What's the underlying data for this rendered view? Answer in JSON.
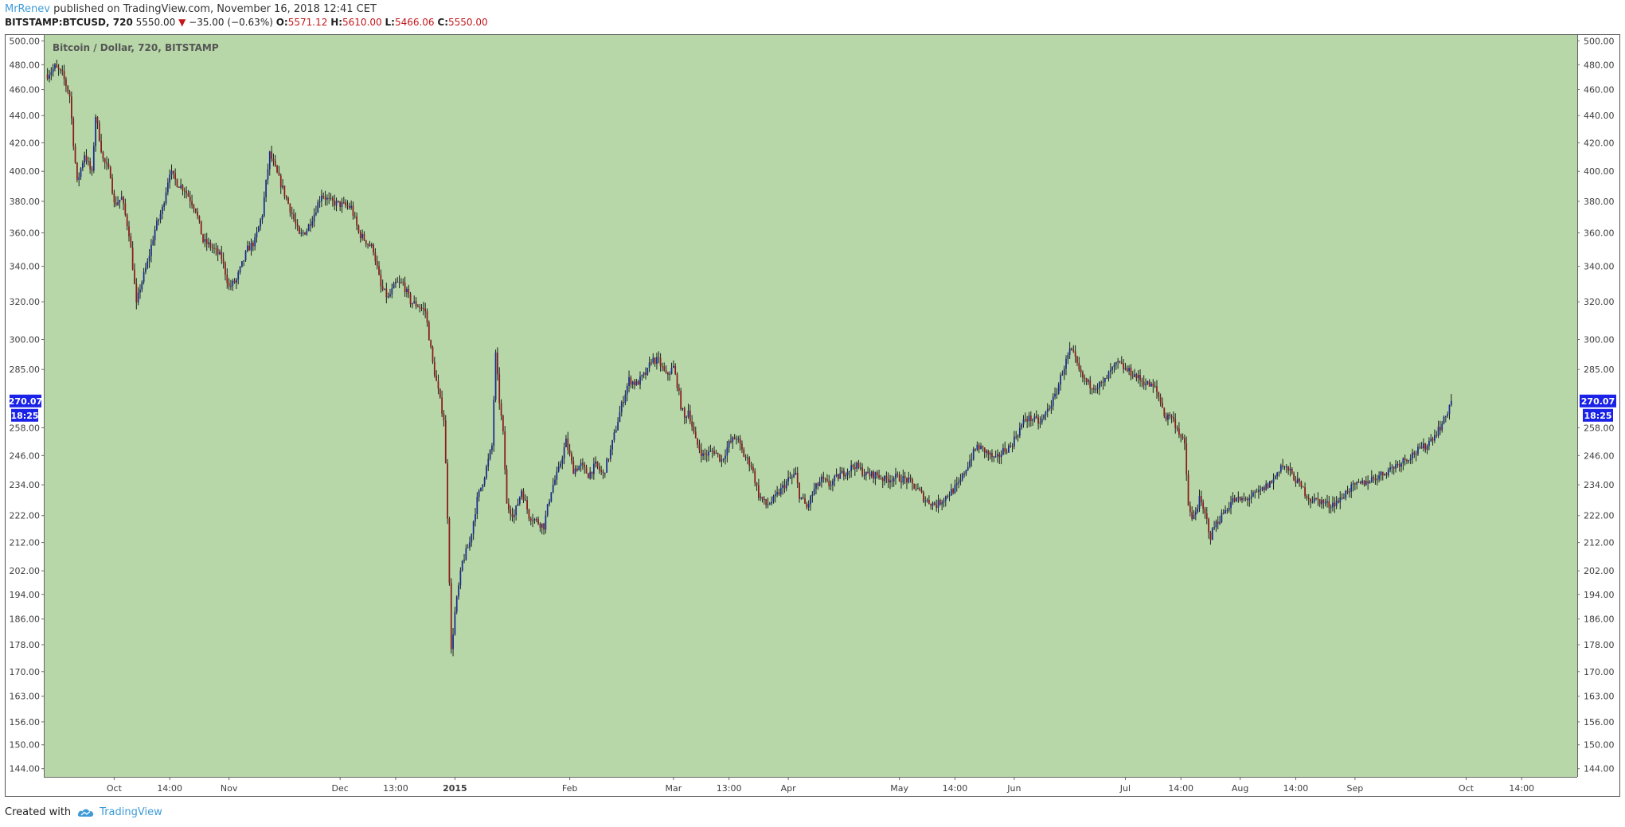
{
  "header": {
    "user": "MrRenev",
    "published": " published on TradingView.com, November 16, 2018 12:41 CET"
  },
  "quote": {
    "symbol": "BITSTAMP:BTCUSD, 720",
    "last": "5550.00",
    "arrow": "▼",
    "change": "−35.00 (−0.63%)",
    "o_label": "O:",
    "o": "5571.12",
    "h_label": "H:",
    "h": "5610.00",
    "l_label": "L:",
    "l": "5466.06",
    "c_label": "C:",
    "c": "5550.00"
  },
  "footer": {
    "created_with": "Created with",
    "brand": "TradingView"
  },
  "colors": {
    "plot_bg": "#b7d7a8",
    "up": "#1a2d8e",
    "down": "#8b1c1c",
    "wick": "#1e1e1e",
    "badge": "#1a22e8",
    "axis_text": "#3d3d3d"
  },
  "chart_data": {
    "type": "candlestick",
    "title": "Bitcoin / Dollar, 720, BITSTAMP",
    "scale": "log",
    "ylim": [
      142,
      505
    ],
    "y_ticks": [
      500,
      480,
      460,
      440,
      420,
      400,
      380,
      360,
      340,
      320,
      300,
      285,
      270.07,
      258,
      246,
      234,
      222,
      212,
      202,
      194,
      186,
      178,
      170,
      163,
      156,
      150,
      144
    ],
    "y_tick_labels": [
      "500.00",
      "480.00",
      "460.00",
      "440.00",
      "420.00",
      "400.00",
      "380.00",
      "360.00",
      "340.00",
      "320.00",
      "300.00",
      "285.00",
      "270.07",
      "258.00",
      "246.00",
      "234.00",
      "222.00",
      "212.00",
      "202.00",
      "194.00",
      "186.00",
      "178.00",
      "170.00",
      "163.00",
      "156.00",
      "150.00",
      "144.00"
    ],
    "last_price_label": "270.07",
    "countdown_label": "18:25",
    "x_range_days": [
      -1,
      413
    ],
    "x_ticks": [
      {
        "day": 18,
        "label": "Oct",
        "bold": false
      },
      {
        "day": 33,
        "label": "14:00",
        "bold": false
      },
      {
        "day": 49,
        "label": "Nov",
        "bold": false
      },
      {
        "day": 79,
        "label": "Dec",
        "bold": false
      },
      {
        "day": 94,
        "label": "13:00",
        "bold": false
      },
      {
        "day": 110,
        "label": "2015",
        "bold": true
      },
      {
        "day": 141,
        "label": "Feb",
        "bold": false
      },
      {
        "day": 169,
        "label": "Mar",
        "bold": false
      },
      {
        "day": 184,
        "label": "13:00",
        "bold": false
      },
      {
        "day": 200,
        "label": "Apr",
        "bold": false
      },
      {
        "day": 230,
        "label": "May",
        "bold": false
      },
      {
        "day": 245,
        "label": "14:00",
        "bold": false
      },
      {
        "day": 261,
        "label": "Jun",
        "bold": false
      },
      {
        "day": 291,
        "label": "Jul",
        "bold": false
      },
      {
        "day": 306,
        "label": "14:00",
        "bold": false
      },
      {
        "day": 322,
        "label": "Aug",
        "bold": false
      },
      {
        "day": 337,
        "label": "14:00",
        "bold": false
      },
      {
        "day": 353,
        "label": "Sep",
        "bold": false
      },
      {
        "day": 383,
        "label": "Oct",
        "bold": false
      },
      {
        "day": 398,
        "label": "14:00",
        "bold": false
      }
    ],
    "price_path": [
      [
        0,
        472
      ],
      [
        2,
        478
      ],
      [
        4,
        472
      ],
      [
        6,
        455
      ],
      [
        7,
        420
      ],
      [
        8,
        392
      ],
      [
        10,
        412
      ],
      [
        12,
        398
      ],
      [
        13,
        440
      ],
      [
        15,
        408
      ],
      [
        17,
        398
      ],
      [
        18,
        378
      ],
      [
        20,
        382
      ],
      [
        22,
        360
      ],
      [
        23,
        340
      ],
      [
        24,
        318
      ],
      [
        25,
        328
      ],
      [
        27,
        342
      ],
      [
        29,
        362
      ],
      [
        31,
        375
      ],
      [
        33,
        400
      ],
      [
        35,
        392
      ],
      [
        37,
        388
      ],
      [
        40,
        375
      ],
      [
        42,
        355
      ],
      [
        44,
        352
      ],
      [
        47,
        345
      ],
      [
        49,
        328
      ],
      [
        51,
        332
      ],
      [
        54,
        350
      ],
      [
        56,
        355
      ],
      [
        58,
        372
      ],
      [
        60,
        412
      ],
      [
        62,
        398
      ],
      [
        64,
        385
      ],
      [
        66,
        372
      ],
      [
        68,
        358
      ],
      [
        70,
        362
      ],
      [
        72,
        372
      ],
      [
        74,
        385
      ],
      [
        76,
        380
      ],
      [
        79,
        378
      ],
      [
        82,
        376
      ],
      [
        84,
        360
      ],
      [
        86,
        355
      ],
      [
        88,
        350
      ],
      [
        90,
        328
      ],
      [
        92,
        322
      ],
      [
        94,
        330
      ],
      [
        96,
        330
      ],
      [
        98,
        320
      ],
      [
        100,
        318
      ],
      [
        102,
        315
      ],
      [
        104,
        288
      ],
      [
        106,
        270
      ],
      [
        107,
        262
      ],
      [
        108,
        222
      ],
      [
        109,
        176
      ],
      [
        110,
        188
      ],
      [
        112,
        205
      ],
      [
        114,
        212
      ],
      [
        116,
        228
      ],
      [
        118,
        238
      ],
      [
        120,
        250
      ],
      [
        121,
        292
      ],
      [
        122,
        270
      ],
      [
        123,
        255
      ],
      [
        124,
        226
      ],
      [
        126,
        222
      ],
      [
        128,
        232
      ],
      [
        130,
        222
      ],
      [
        132,
        220
      ],
      [
        134,
        218
      ],
      [
        136,
        232
      ],
      [
        138,
        240
      ],
      [
        140,
        252
      ],
      [
        142,
        240
      ],
      [
        144,
        242
      ],
      [
        146,
        238
      ],
      [
        148,
        242
      ],
      [
        150,
        238
      ],
      [
        152,
        248
      ],
      [
        155,
        268
      ],
      [
        157,
        280
      ],
      [
        159,
        278
      ],
      [
        162,
        284
      ],
      [
        163,
        290
      ],
      [
        165,
        289
      ],
      [
        167,
        282
      ],
      [
        169,
        286
      ],
      [
        170,
        278
      ],
      [
        171,
        268
      ],
      [
        172,
        262
      ],
      [
        173,
        266
      ],
      [
        175,
        252
      ],
      [
        177,
        246
      ],
      [
        180,
        248
      ],
      [
        182,
        244
      ],
      [
        184,
        251
      ],
      [
        186,
        254
      ],
      [
        188,
        246
      ],
      [
        190,
        242
      ],
      [
        192,
        230
      ],
      [
        194,
        226
      ],
      [
        196,
        228
      ],
      [
        198,
        232
      ],
      [
        200,
        236
      ],
      [
        202,
        238
      ],
      [
        203,
        230
      ],
      [
        205,
        225
      ],
      [
        207,
        232
      ],
      [
        209,
        236
      ],
      [
        211,
        234
      ],
      [
        214,
        238
      ],
      [
        216,
        240
      ],
      [
        218,
        242
      ],
      [
        221,
        238
      ],
      [
        224,
        238
      ],
      [
        226,
        236
      ],
      [
        229,
        237
      ],
      [
        232,
        236
      ],
      [
        235,
        232
      ],
      [
        237,
        228
      ],
      [
        240,
        226
      ],
      [
        243,
        230
      ],
      [
        246,
        234
      ],
      [
        249,
        244
      ],
      [
        251,
        250
      ],
      [
        253,
        248
      ],
      [
        256,
        244
      ],
      [
        258,
        248
      ],
      [
        260,
        250
      ],
      [
        262,
        256
      ],
      [
        264,
        262
      ],
      [
        266,
        262
      ],
      [
        268,
        260
      ],
      [
        270,
        266
      ],
      [
        272,
        272
      ],
      [
        274,
        284
      ],
      [
        276,
        294
      ],
      [
        277,
        292
      ],
      [
        279,
        282
      ],
      [
        281,
        278
      ],
      [
        283,
        277
      ],
      [
        285,
        278
      ],
      [
        287,
        284
      ],
      [
        289,
        288
      ],
      [
        291,
        285
      ],
      [
        293,
        283
      ],
      [
        295,
        280
      ],
      [
        297,
        278
      ],
      [
        299,
        276
      ],
      [
        300,
        272
      ],
      [
        302,
        262
      ],
      [
        303,
        264
      ],
      [
        305,
        258
      ],
      [
        307,
        250
      ],
      [
        308,
        226
      ],
      [
        309,
        220
      ],
      [
        311,
        228
      ],
      [
        313,
        220
      ],
      [
        314,
        214
      ],
      [
        315,
        218
      ],
      [
        317,
        222
      ],
      [
        320,
        228
      ],
      [
        323,
        228
      ],
      [
        326,
        230
      ],
      [
        328,
        232
      ],
      [
        331,
        236
      ],
      [
        333,
        242
      ],
      [
        335,
        240
      ],
      [
        338,
        234
      ],
      [
        341,
        228
      ],
      [
        343,
        228
      ],
      [
        346,
        226
      ],
      [
        349,
        228
      ],
      [
        351,
        232
      ],
      [
        354,
        234
      ],
      [
        357,
        236
      ],
      [
        360,
        238
      ],
      [
        363,
        241
      ],
      [
        366,
        244
      ],
      [
        369,
        247
      ],
      [
        372,
        250
      ],
      [
        375,
        256
      ],
      [
        377,
        261
      ],
      [
        379,
        270.07
      ]
    ],
    "note": "Approximate daily closes read from the chart; candles rendered as 2 per day (12h bars), last bar at 270.07."
  }
}
